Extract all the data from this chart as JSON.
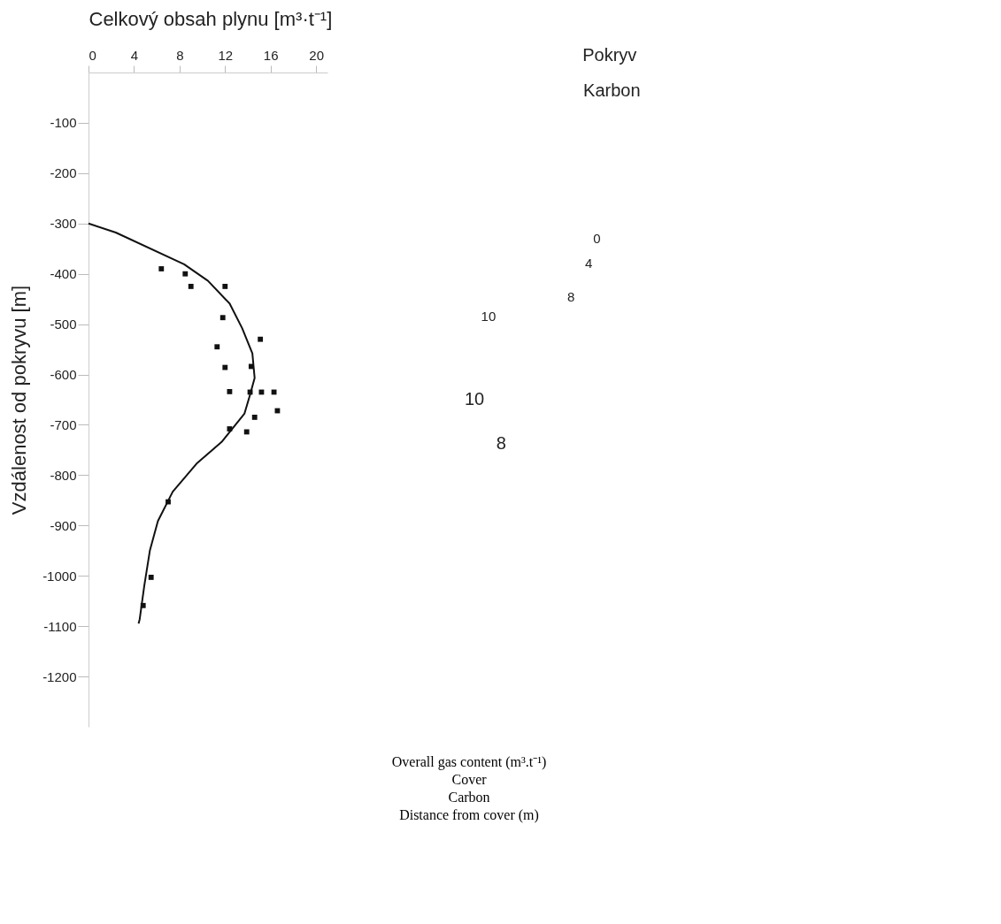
{
  "chart_data": [
    {
      "type": "scatter",
      "xlabel": "Celkový obsah plynu [m³·t⁻¹]",
      "ylabel": "Vzdálenost od pokryvu [m]",
      "xlim": [
        0,
        21
      ],
      "xticks": [
        0,
        4,
        8,
        12,
        16,
        20
      ],
      "ylim": [
        -1300,
        0
      ],
      "yticks": [
        -100,
        -200,
        -300,
        -400,
        -500,
        -600,
        -700,
        -800,
        -900,
        -1000,
        -1100,
        -1200
      ],
      "grid": false,
      "line_style": "solid",
      "series": [
        {
          "marker": "square",
          "color": "#111111",
          "x": [
            6.4,
            8.5,
            9.0,
            12.0,
            11.8,
            15.1,
            11.3,
            12.0,
            14.3,
            12.4,
            14.2,
            15.2,
            16.3,
            16.6,
            14.6,
            12.4,
            13.9,
            7.0,
            5.5,
            4.8
          ],
          "values": [
            -390,
            -400,
            -425,
            -425,
            -487,
            -530,
            -545,
            -586,
            -584,
            -634,
            -635,
            -635,
            -635,
            -672,
            -685,
            -708,
            -714,
            -853,
            -1003,
            -1059
          ]
        },
        {
          "type": "line",
          "color": "#111111",
          "x": [
            0,
            2.4,
            8.4,
            10.5,
            12.4,
            13.5,
            14.4,
            14.6,
            14.2,
            13.7,
            12.7,
            11.7,
            9.5,
            7.4,
            6.1,
            5.4,
            4.9,
            4.5,
            4.4
          ],
          "values": [
            -300,
            -318,
            -381,
            -414,
            -459,
            -508,
            -558,
            -607,
            -640,
            -678,
            -706,
            -734,
            -777,
            -833,
            -891,
            -949,
            -1020,
            -1086,
            -1095
          ]
        }
      ],
      "annotations": [
        "Overall gas content (m³.t⁻¹)",
        "Cover",
        "Carbon",
        "Distance from cover (m)"
      ]
    },
    {
      "type": "other",
      "annotations": [
        "Pokryv",
        "Karbon",
        "0",
        "4",
        "8",
        "10",
        "10",
        "8"
      ]
    }
  ]
}
